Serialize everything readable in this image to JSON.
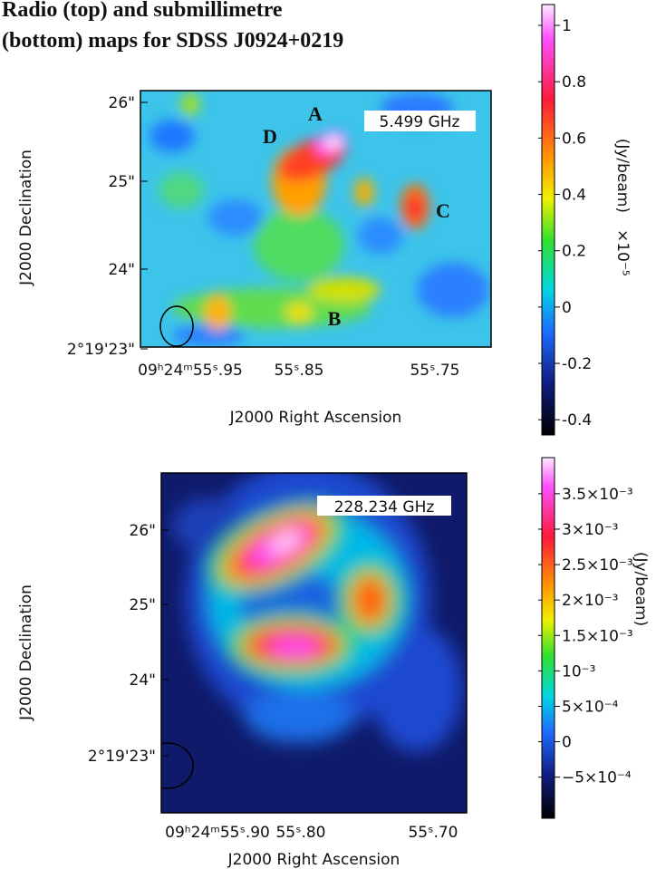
{
  "title_lines": [
    "Radio (top) and submillimetre",
    "(bottom) maps for SDSS J0924+0219"
  ],
  "panels": [
    {
      "frequency_label": "5.499 GHz",
      "source_labels": [
        "A",
        "D",
        "C",
        "B"
      ],
      "y_axis_label": "J2000 Declination",
      "x_axis_label": "J2000 Right Ascension",
      "y_tick_labels": [
        "26\"",
        "25\"",
        "24\"",
        "2°19'23\""
      ],
      "x_tick_labels": [
        "09ʰ24ᵐ55ˢ.95",
        "55ˢ.85",
        "55ˢ.75"
      ],
      "colorbar": {
        "unit": "(Jy/beam)",
        "scale": "×10⁻⁵",
        "lim": [
          -0.454,
          1.074
        ],
        "ticks": [
          1,
          0.8,
          0.6,
          0.4,
          0.2,
          0,
          -0.2,
          -0.4
        ]
      }
    },
    {
      "frequency_label": "228.234 GHz",
      "y_axis_label": "J2000 Declination",
      "x_axis_label": "J2000 Right Ascension",
      "y_tick_labels": [
        "26\"",
        "25\"",
        "24\"",
        "2°19'23\""
      ],
      "x_tick_labels": [
        "09ʰ24ᵐ55ˢ.90",
        "55ˢ.80",
        "55ˢ.70"
      ],
      "colorbar": {
        "unit": "(Jy/beam)",
        "lim": [
          -0.00108,
          0.00401
        ],
        "ticks": [
          {
            "value": 0.0035,
            "label": "3.5×10⁻³"
          },
          {
            "value": 0.003,
            "label": "3×10⁻³"
          },
          {
            "value": 0.0025,
            "label": "2.5×10⁻³"
          },
          {
            "value": 0.002,
            "label": "2×10⁻³"
          },
          {
            "value": 0.0015,
            "label": "1.5×10⁻³"
          },
          {
            "value": 0.001,
            "label": "10⁻³"
          },
          {
            "value": 0.0005,
            "label": "5×10⁻⁴"
          },
          0,
          {
            "value": -0.0005,
            "label": "−5×10⁻⁴"
          }
        ]
      }
    }
  ]
}
